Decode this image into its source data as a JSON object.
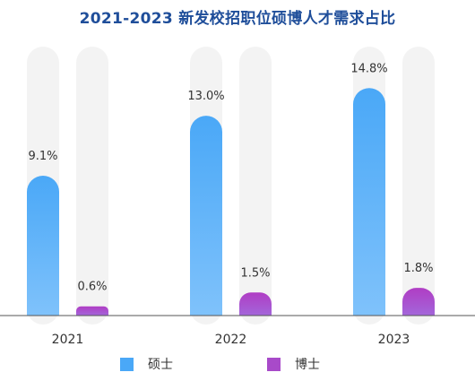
{
  "chart_data": {
    "type": "bar",
    "title": "2021-2023 新发校招职位硕博人才需求占比",
    "categories": [
      "2021",
      "2022",
      "2023"
    ],
    "series": [
      {
        "name": "硕士",
        "values": [
          9.1,
          13.0,
          14.8
        ],
        "labels": [
          "9.1%",
          "13.0%",
          "14.8%"
        ],
        "color": "#4aa8f7"
      },
      {
        "name": "博士",
        "values": [
          0.6,
          1.5,
          1.8
        ],
        "labels": [
          "0.6%",
          "1.5%",
          "1.8%"
        ],
        "color": "#a84ac9"
      }
    ],
    "ylim": [
      0,
      17.5
    ],
    "background_track_color": "#f3f3f3",
    "grid": false,
    "legend_position": "bottom"
  }
}
